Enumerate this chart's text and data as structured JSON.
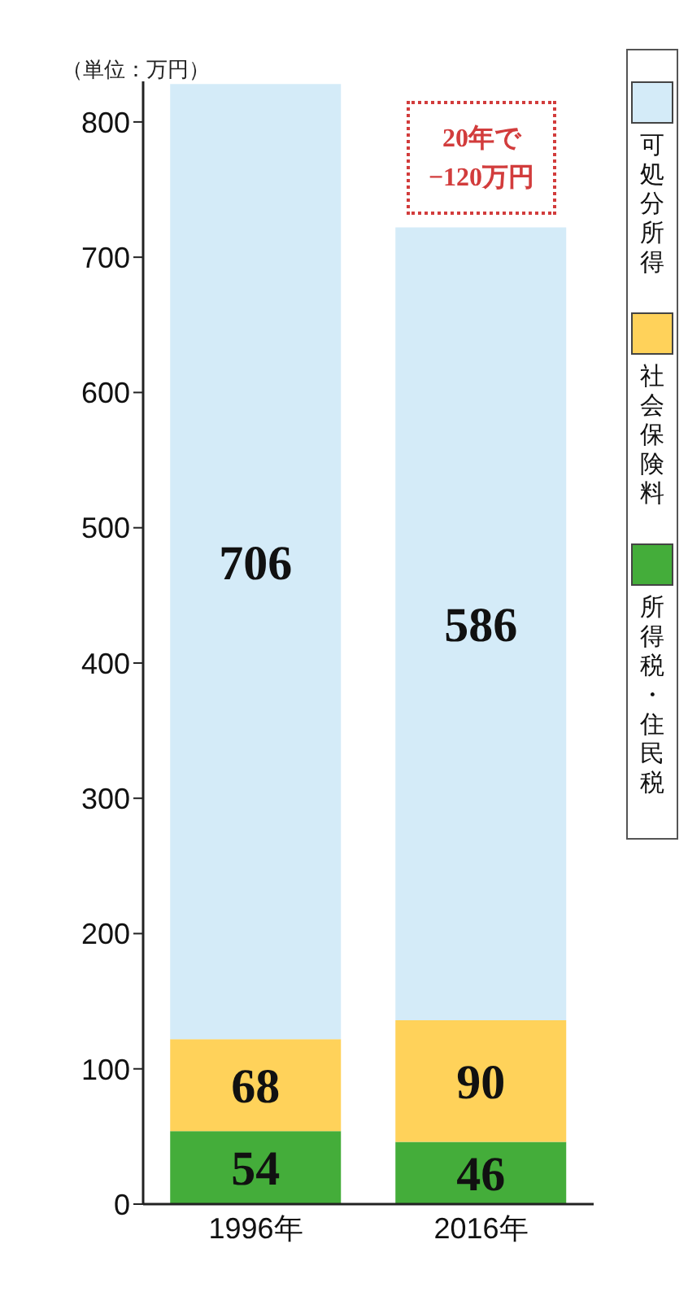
{
  "chart_data": {
    "type": "bar",
    "stacked": true,
    "ylabel": "（単位：万円）",
    "categories": [
      "1996年",
      "2016年"
    ],
    "series": [
      {
        "name": "所得税・住民税",
        "color": "#44ad3a",
        "values": [
          54,
          46
        ]
      },
      {
        "name": "社会保険料",
        "color": "#ffd25a",
        "values": [
          68,
          90
        ]
      },
      {
        "name": "可処分所得",
        "color": "#d4ebf8",
        "values": [
          706,
          586
        ]
      }
    ],
    "ylim": [
      0,
      830
    ],
    "yticks": [
      0,
      100,
      200,
      300,
      400,
      500,
      600,
      700,
      800
    ],
    "data_labels": true,
    "legend": "right",
    "grid": false,
    "annotations": [
      "20年で\n−120万円"
    ]
  }
}
